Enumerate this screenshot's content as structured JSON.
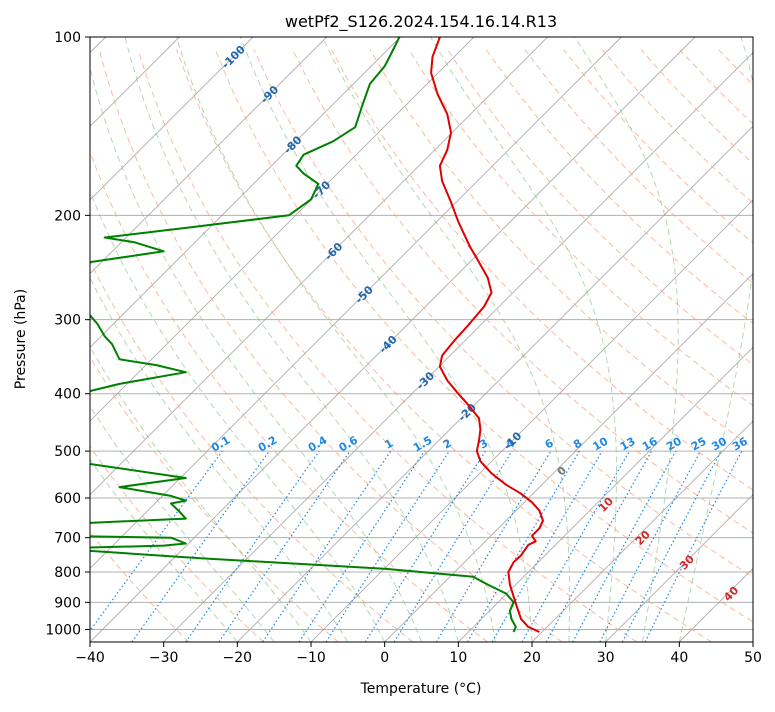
{
  "chart_data": {
    "type": "line",
    "title": "wetPf2_S126.2024.154.16.14.R13",
    "xlabel": "Temperature (°C)",
    "ylabel": "Pressure (hPa)",
    "xlim": [
      -40,
      50
    ],
    "ylim": [
      1050,
      100
    ],
    "yscale": "log",
    "grid": true,
    "x_ticks": [
      "−40",
      "−30",
      "−20",
      "−10",
      "0",
      "10",
      "20",
      "30",
      "40",
      "50"
    ],
    "x_tick_values": [
      -40,
      -30,
      -20,
      -10,
      0,
      10,
      20,
      30,
      40,
      50
    ],
    "y_ticks": [
      "100",
      "200",
      "300",
      "400",
      "500",
      "600",
      "700",
      "800",
      "900",
      "1000"
    ],
    "y_tick_values": [
      100,
      200,
      300,
      400,
      500,
      600,
      700,
      800,
      900,
      1000
    ],
    "colors": {
      "temperature": "#e00000",
      "dewpoint": "#008000",
      "dry_adiabat": "#f4a582",
      "moist_adiabat": "#7fbf7b",
      "mixing_ratio": "#1e88e5",
      "isotherm": "#999999",
      "isotherm_label": "#2166ac",
      "cape_label": "#d62728"
    },
    "series": [
      {
        "key": "temperature",
        "points": [
          [
            21.0,
            1010
          ],
          [
            19.5,
            990
          ],
          [
            18.5,
            960
          ],
          [
            18.0,
            920
          ],
          [
            17.5,
            880
          ],
          [
            17.0,
            840
          ],
          [
            16.8,
            800
          ],
          [
            17.5,
            770
          ],
          [
            18.5,
            750
          ],
          [
            19.5,
            720
          ],
          [
            20.5,
            710
          ],
          [
            20.0,
            695
          ],
          [
            21.0,
            675
          ],
          [
            21.5,
            655
          ],
          [
            21.0,
            630
          ],
          [
            20.0,
            610
          ],
          [
            18.5,
            590
          ],
          [
            16.5,
            570
          ],
          [
            14.5,
            545
          ],
          [
            13.0,
            520
          ],
          [
            12.5,
            500
          ],
          [
            12.8,
            480
          ],
          [
            13.0,
            460
          ],
          [
            12.8,
            440
          ],
          [
            11.5,
            420
          ],
          [
            10.0,
            400
          ],
          [
            8.5,
            380
          ],
          [
            7.5,
            360
          ],
          [
            7.8,
            345
          ],
          [
            9.5,
            325
          ],
          [
            11.5,
            305
          ],
          [
            13.5,
            285
          ],
          [
            14.5,
            270
          ],
          [
            14.0,
            255
          ],
          [
            12.8,
            240
          ],
          [
            11.5,
            225
          ],
          [
            10.0,
            205
          ],
          [
            9.0,
            190
          ],
          [
            7.8,
            175
          ],
          [
            7.5,
            165
          ],
          [
            8.5,
            155
          ],
          [
            9.0,
            145
          ],
          [
            8.5,
            135
          ],
          [
            7.2,
            125
          ],
          [
            6.3,
            115
          ],
          [
            6.5,
            108
          ],
          [
            7.5,
            100
          ]
        ]
      },
      {
        "key": "dewpoint",
        "points": [
          [
            17.5,
            1010
          ],
          [
            17.8,
            990
          ],
          [
            17.2,
            960
          ],
          [
            17.0,
            930
          ],
          [
            17.5,
            900
          ],
          [
            16.5,
            870
          ],
          [
            14.0,
            840
          ],
          [
            12.0,
            815
          ],
          [
            0,
            790
          ],
          [
            -25,
            758
          ],
          [
            -45,
            730
          ],
          [
            -30,
            722
          ],
          [
            -27,
            716
          ],
          [
            -29,
            700
          ],
          [
            -45,
            695
          ],
          [
            -45,
            665
          ],
          [
            -27,
            650
          ],
          [
            -28,
            630
          ],
          [
            -29,
            613
          ],
          [
            -27,
            606
          ],
          [
            -29,
            595
          ],
          [
            -36,
            575
          ],
          [
            -27,
            555
          ],
          [
            -38,
            530
          ],
          [
            -45,
            515
          ],
          [
            -45,
            465
          ],
          [
            -45,
            410
          ],
          [
            -36,
            385
          ],
          [
            -27,
            368
          ],
          [
            -31,
            358
          ],
          [
            -36,
            350
          ],
          [
            -37,
            330
          ],
          [
            -38,
            320
          ],
          [
            -39,
            305
          ],
          [
            -40,
            295
          ],
          [
            -45,
            275
          ],
          [
            -45,
            245
          ],
          [
            -30,
            230
          ],
          [
            -34,
            222
          ],
          [
            -38,
            218
          ],
          [
            -27,
            210
          ],
          [
            -13,
            200
          ],
          [
            -10,
            188
          ],
          [
            -9,
            177
          ],
          [
            -11,
            170
          ],
          [
            -12,
            165
          ],
          [
            -11,
            158
          ],
          [
            -7,
            150
          ],
          [
            -4,
            142
          ],
          [
            -3,
            130
          ],
          [
            -2,
            120
          ],
          [
            0,
            112
          ],
          [
            1,
            106
          ],
          [
            2,
            100
          ]
        ]
      }
    ],
    "isotherm_labels": [
      "-100",
      "-90",
      "-80",
      "-70",
      "-60",
      "-50",
      "-40",
      "-30",
      "-20",
      "-10"
    ],
    "isotherm_label_values": [
      -100,
      -90,
      -80,
      -70,
      -60,
      -50,
      -40,
      -30,
      -20,
      -10
    ],
    "mixing_ratio_labels": [
      "0.1",
      "0.2",
      "0.4",
      "0.6",
      "1",
      "1.5",
      "2",
      "3",
      "4",
      "6",
      "8",
      "10",
      "13",
      "16",
      "20",
      "25",
      "30",
      "36"
    ],
    "mixing_ratio_values": [
      0.1,
      0.2,
      0.4,
      0.6,
      1,
      1.5,
      2,
      3,
      4,
      6,
      8,
      10,
      13,
      16,
      20,
      25,
      30,
      36
    ],
    "cape_labels": [
      "0",
      "10",
      "20",
      "30",
      "40"
    ],
    "cape_label_values": [
      0,
      10,
      20,
      30,
      40
    ]
  }
}
